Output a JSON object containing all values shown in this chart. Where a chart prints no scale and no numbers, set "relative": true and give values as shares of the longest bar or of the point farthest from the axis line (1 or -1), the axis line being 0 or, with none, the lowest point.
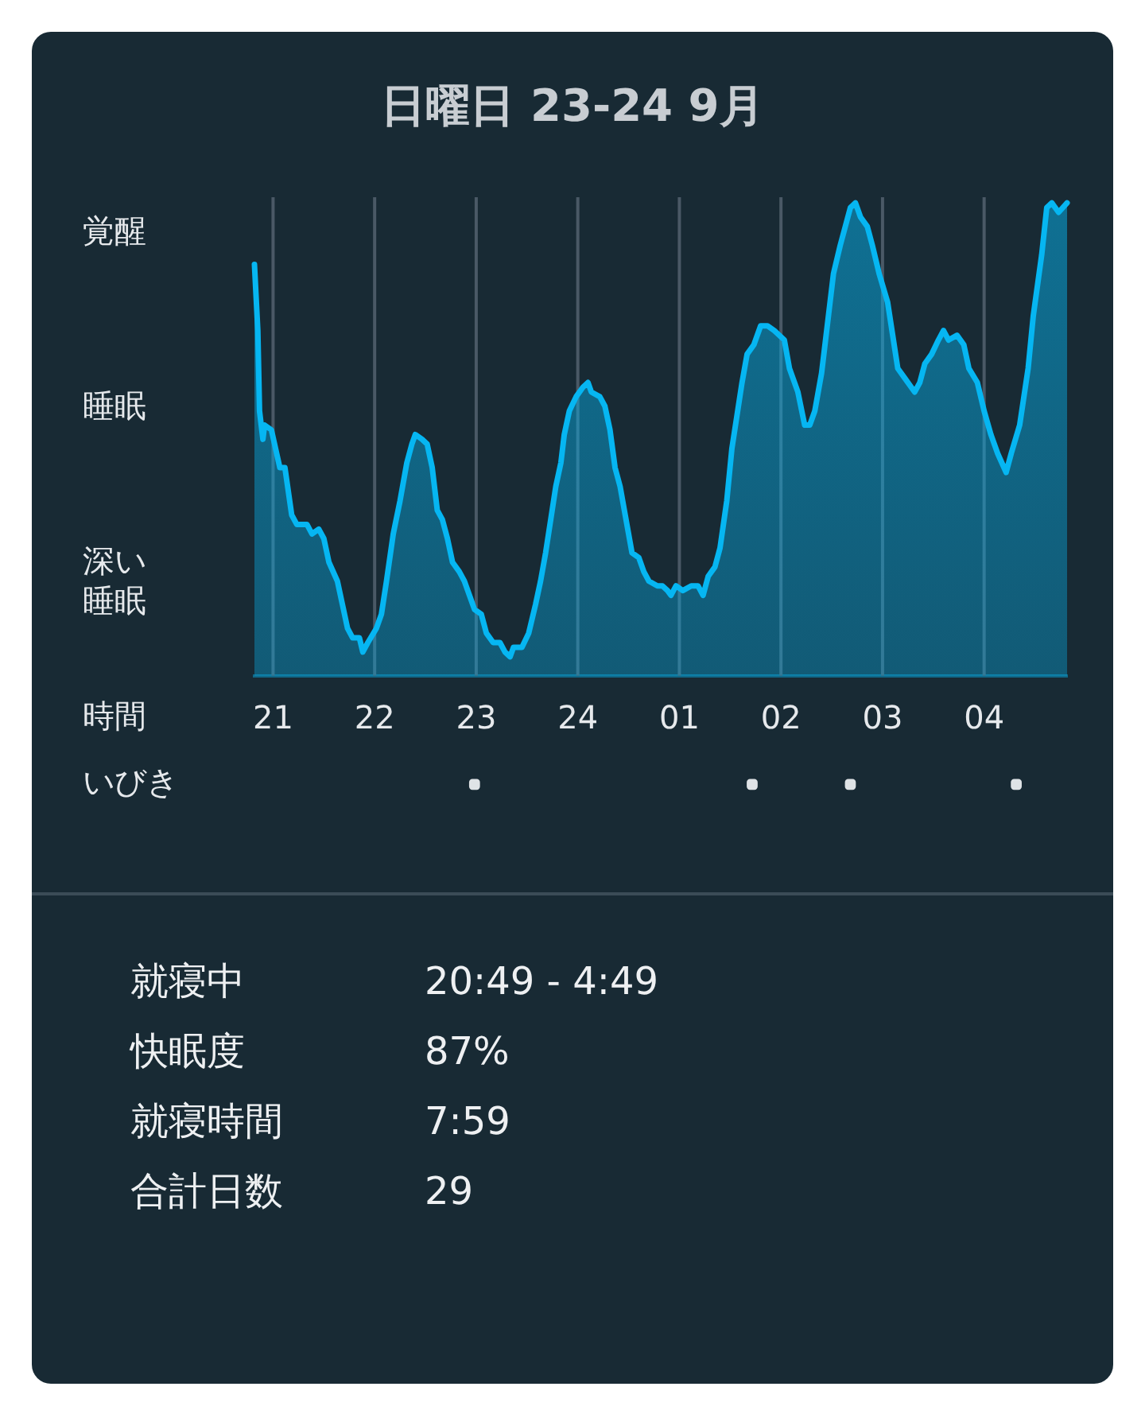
{
  "chart_data": [
    {
      "type": "area",
      "title": "日曜日 23-24 9月",
      "xlabel": "時間",
      "relative": true,
      "annotations": [
        "覚醒",
        "睡眠",
        "深い睡眠"
      ],
      "series": [
        {
          "type": "area",
          "color": "#06b6f2",
          "x": [
            "--09-23T20:49",
            "--09-23T20:51",
            "--09-23T20:52",
            "--09-23T20:54",
            "--09-23T20:55",
            "--09-23T20:59",
            "--09-23T21:04",
            "--09-23T21:07",
            "--09-23T21:11",
            "--09-23T21:14",
            "--09-23T21:20",
            "--09-23T21:23",
            "--09-23T21:27",
            "--09-23T21:30",
            "--09-23T21:33",
            "--09-23T21:38",
            "--09-23T21:41",
            "--09-23T21:44",
            "--09-23T21:47",
            "--09-23T21:51",
            "--09-23T21:53",
            "--09-23T21:56",
            "--09-23T22:01",
            "--09-23T22:04",
            "--09-23T22:07",
            "--09-23T22:11",
            "--09-23T22:15",
            "--09-23T22:19",
            "--09-23T22:22",
            "--09-23T22:24",
            "--09-23T22:28",
            "--09-23T22:31",
            "--09-23T22:34",
            "--09-23T22:37",
            "--09-23T22:40",
            "--09-23T22:43",
            "--09-23T22:46",
            "--09-23T22:50",
            "--09-23T22:53",
            "--09-23T22:57",
            "--09-23T22:59",
            "--09-23T23:03",
            "--09-23T23:06",
            "--09-23T23:10",
            "--09-23T23:14",
            "--09-23T23:17",
            "--09-23T23:20",
            "--09-23T23:22",
            "--09-23T23:27",
            "--09-23T23:31",
            "--09-23T23:35",
            "--09-23T23:38",
            "--09-23T23:41",
            "--09-23T23:44",
            "--09-23T23:47",
            "--09-23T23:50",
            "--09-23T23:52",
            "--09-23T23:55",
            "--09-23T23:59",
            "--09-24T00:03",
            "--09-24T00:06",
            "--09-24T00:08",
            "--09-24T00:13",
            "--09-24T00:16",
            "--09-24T00:19",
            "--09-24T00:22",
            "--09-24T00:25",
            "--09-24T00:28",
            "--09-24T00:32",
            "--09-24T00:36",
            "--09-24T00:39",
            "--09-24T00:42",
            "--09-24T00:47",
            "--09-24T00:50",
            "--09-24T00:53",
            "--09-24T00:55",
            "--09-24T00:58",
            "--09-24T01:02",
            "--09-24T01:07",
            "--09-24T01:11",
            "--09-24T01:14",
            "--09-24T01:17",
            "--09-24T01:21",
            "--09-24T01:24",
            "--09-24T01:28",
            "--09-24T01:31",
            "--09-24T01:34",
            "--09-24T01:37",
            "--09-24T01:40",
            "--09-24T01:44",
            "--09-24T01:48",
            "--09-24T01:52",
            "--09-24T01:56",
            "--09-24T02:02",
            "--09-24T02:05",
            "--09-24T02:10",
            "--09-24T02:14",
            "--09-24T02:17",
            "--09-24T02:20",
            "--09-24T02:24",
            "--09-24T02:28",
            "--09-24T02:31",
            "--09-24T02:35",
            "--09-24T02:38",
            "--09-24T02:41",
            "--09-24T02:44",
            "--09-24T02:47",
            "--09-24T02:51",
            "--09-24T02:54",
            "--09-24T02:58",
            "--09-24T03:03",
            "--09-24T03:06",
            "--09-24T03:09",
            "--09-24T03:13",
            "--09-24T03:19",
            "--09-24T03:22",
            "--09-24T03:25",
            "--09-24T03:29",
            "--09-24T03:33",
            "--09-24T03:36",
            "--09-24T03:39",
            "--09-24T03:44",
            "--09-24T03:48",
            "--09-24T03:51",
            "--09-24T03:56",
            "--09-24T04:00",
            "--09-24T04:04",
            "--09-24T04:08",
            "--09-24T04:13",
            "--09-24T04:16",
            "--09-24T04:21",
            "--09-24T04:26",
            "--09-24T04:29",
            "--09-24T04:34",
            "--09-24T04:37",
            "--09-24T04:40",
            "--09-24T04:44",
            "--09-24T04:49"
          ],
          "values": [
            0.87,
            0.73,
            0.56,
            0.5,
            0.53,
            0.52,
            0.44,
            0.44,
            0.34,
            0.32,
            0.32,
            0.3,
            0.31,
            0.29,
            0.24,
            0.2,
            0.15,
            0.1,
            0.08,
            0.08,
            0.05,
            0.07,
            0.1,
            0.13,
            0.2,
            0.3,
            0.37,
            0.45,
            0.49,
            0.51,
            0.5,
            0.49,
            0.44,
            0.35,
            0.33,
            0.29,
            0.24,
            0.22,
            0.2,
            0.16,
            0.14,
            0.13,
            0.09,
            0.07,
            0.07,
            0.05,
            0.04,
            0.06,
            0.06,
            0.09,
            0.15,
            0.2,
            0.26,
            0.33,
            0.4,
            0.45,
            0.51,
            0.56,
            0.59,
            0.61,
            0.62,
            0.6,
            0.59,
            0.57,
            0.52,
            0.44,
            0.4,
            0.34,
            0.26,
            0.25,
            0.22,
            0.2,
            0.19,
            0.19,
            0.18,
            0.17,
            0.19,
            0.18,
            0.19,
            0.19,
            0.17,
            0.21,
            0.23,
            0.27,
            0.37,
            0.48,
            0.55,
            0.62,
            0.68,
            0.7,
            0.74,
            0.74,
            0.73,
            0.71,
            0.65,
            0.6,
            0.53,
            0.53,
            0.56,
            0.64,
            0.76,
            0.85,
            0.91,
            0.95,
            0.99,
            1,
            0.97,
            0.95,
            0.91,
            0.85,
            0.79,
            0.72,
            0.65,
            0.63,
            0.6,
            0.62,
            0.66,
            0.68,
            0.71,
            0.73,
            0.71,
            0.72,
            0.7,
            0.65,
            0.62,
            0.56,
            0.51,
            0.47,
            0.43,
            0.47,
            0.53,
            0.65,
            0.76,
            0.89,
            0.99,
            1,
            0.98,
            1
          ]
        },
        {
          "type": "scatter",
          "name": "いびき",
          "color": "#dfe3e6",
          "marker": "square",
          "x": [
            "--09-23T22:59",
            "--09-24T01:43",
            "--09-24T02:41",
            "--09-24T04:19"
          ],
          "values": [
            -0.23,
            -0.23,
            -0.23,
            -0.23
          ]
        }
      ],
      "xlim": [
        "--09-23T20:49",
        "--09-24T04:49"
      ],
      "xticks": [
        {
          "value": "--09-23T21:00",
          "label": "21"
        },
        {
          "value": "--09-23T22:00",
          "label": "22"
        },
        {
          "value": "--09-23T23:00",
          "label": "23"
        },
        {
          "value": "--09-24T00:00",
          "label": "24"
        },
        {
          "value": "--09-24T01:00",
          "label": "01"
        },
        {
          "value": "--09-24T02:00",
          "label": "02"
        },
        {
          "value": "--09-24T03:00",
          "label": "03"
        },
        {
          "value": "--09-24T04:00",
          "label": "04"
        }
      ],
      "grid": "x"
    },
    {
      "type": "other",
      "annotations": [
        "就寝中",
        "20:49 - 4:49",
        "快眠度",
        "87%",
        "就寝時間",
        "7:59",
        "合計日数",
        "29"
      ]
    }
  ]
}
